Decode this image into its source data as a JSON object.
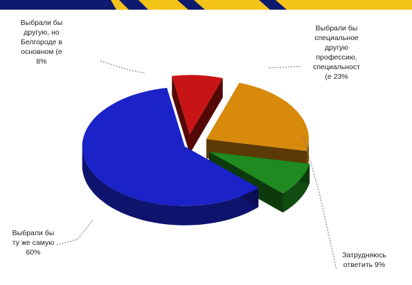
{
  "chart_data": {
    "type": "pie",
    "title": "",
    "slices": [
      {
        "label_lines": [
          "Выбрали бы",
          "другую, но",
          "Белгороде в",
          "основном (е",
          "8%"
        ],
        "value": 8,
        "color": "#c81414"
      },
      {
        "label_lines": [
          "Выбрали бы",
          "специальное",
          "другую",
          "профессию,",
          "специальност",
          "(е 23%"
        ],
        "value": 23,
        "color": "#d88a0c"
      },
      {
        "label_lines": [
          "Затрудняюсь",
          "ответить 9%"
        ],
        "value": 9,
        "color": "#1f8a1f"
      },
      {
        "label_lines": [
          "Выбрали бы",
          "ту же самую",
          "60%"
        ],
        "value": 60,
        "color": "#1a22c8"
      }
    ]
  },
  "theme": {
    "banner_navy": "#0e1a6e",
    "banner_gold": "#f3c318"
  }
}
